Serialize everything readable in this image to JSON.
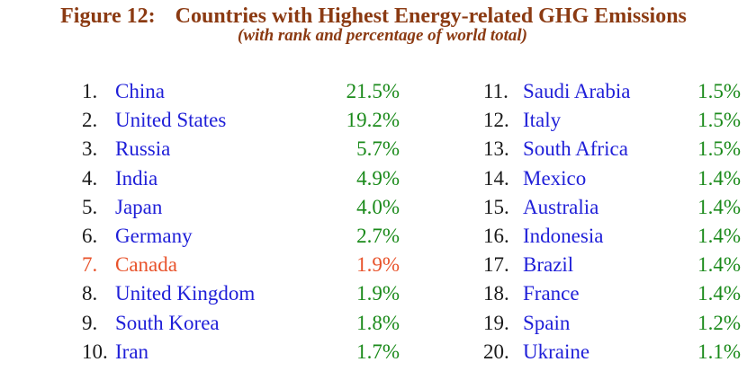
{
  "figure": {
    "label": "Figure 12:",
    "title": "Countries with Highest Energy-related GHG Emissions",
    "subtitle": "(with rank and percentage of world total)"
  },
  "colors": {
    "title": "#8b3a12",
    "country": "#1f1fd8",
    "percentage": "#1a8a1a",
    "highlight": "#e8522a",
    "rank": "#1a1a1a"
  },
  "rows": [
    {
      "rank": "1.",
      "country": "China",
      "percent": "21.5%"
    },
    {
      "rank": "2.",
      "country": "United States",
      "percent": "19.2%"
    },
    {
      "rank": "3.",
      "country": "Russia",
      "percent": "5.7%"
    },
    {
      "rank": "4.",
      "country": "India",
      "percent": "4.9%"
    },
    {
      "rank": "5.",
      "country": "Japan",
      "percent": "4.0%"
    },
    {
      "rank": "6.",
      "country": "Germany",
      "percent": "2.7%"
    },
    {
      "rank": "7.",
      "country": "Canada",
      "percent": "1.9%",
      "highlighted": true
    },
    {
      "rank": "8.",
      "country": "United Kingdom",
      "percent": "1.9%"
    },
    {
      "rank": "9.",
      "country": "South Korea",
      "percent": "1.8%"
    },
    {
      "rank": "10.",
      "country": "Iran",
      "percent": "1.7%"
    },
    {
      "rank": "11.",
      "country": "Saudi Arabia",
      "percent": "1.5%"
    },
    {
      "rank": "12.",
      "country": "Italy",
      "percent": "1.5%"
    },
    {
      "rank": "13.",
      "country": "South Africa",
      "percent": "1.5%"
    },
    {
      "rank": "14.",
      "country": "Mexico",
      "percent": "1.4%"
    },
    {
      "rank": "15.",
      "country": "Australia",
      "percent": "1.4%"
    },
    {
      "rank": "16.",
      "country": "Indonesia",
      "percent": "1.4%"
    },
    {
      "rank": "17.",
      "country": "Brazil",
      "percent": "1.4%"
    },
    {
      "rank": "18.",
      "country": "France",
      "percent": "1.4%"
    },
    {
      "rank": "19.",
      "country": "Spain",
      "percent": "1.2%"
    },
    {
      "rank": "20.",
      "country": "Ukraine",
      "percent": "1.1%"
    }
  ]
}
